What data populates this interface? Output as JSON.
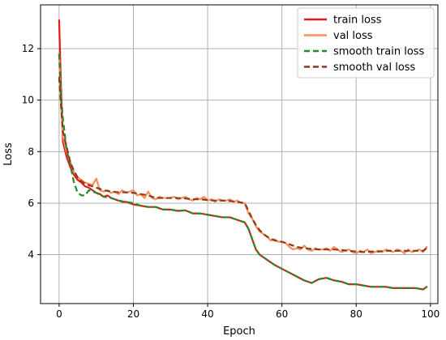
{
  "chart_data": {
    "type": "line",
    "title": "",
    "xlabel": "Epoch",
    "ylabel": "Loss",
    "xlim": [
      -5,
      102
    ],
    "ylim": [
      2.1,
      13.7
    ],
    "xticks": [
      0,
      20,
      40,
      60,
      80,
      100
    ],
    "yticks": [
      4,
      6,
      8,
      10,
      12
    ],
    "grid": true,
    "legend": "top-right",
    "series": [
      {
        "name": "train loss",
        "color": "#e31a1c",
        "style": "solid",
        "x": [
          0,
          0.5,
          1,
          2,
          3,
          4,
          5,
          6,
          7,
          8,
          9,
          10,
          11,
          12,
          13,
          14,
          15,
          16,
          17,
          18,
          19,
          20,
          22,
          24,
          26,
          28,
          30,
          32,
          34,
          36,
          38,
          40,
          42,
          44,
          46,
          48,
          49,
          50,
          51,
          52,
          53,
          54,
          55,
          56,
          58,
          60,
          62,
          64,
          66,
          68,
          70,
          72,
          74,
          76,
          78,
          80,
          82,
          84,
          86,
          88,
          90,
          92,
          94,
          96,
          98,
          99
        ],
        "y": [
          13.1,
          10.6,
          8.4,
          7.8,
          7.4,
          7.1,
          6.9,
          6.8,
          6.65,
          6.6,
          6.5,
          6.4,
          6.35,
          6.25,
          6.3,
          6.2,
          6.15,
          6.1,
          6.05,
          6.05,
          6.0,
          5.95,
          5.9,
          5.85,
          5.85,
          5.75,
          5.75,
          5.7,
          5.72,
          5.6,
          5.6,
          5.55,
          5.5,
          5.45,
          5.45,
          5.35,
          5.3,
          5.25,
          5.0,
          4.6,
          4.2,
          4.0,
          3.9,
          3.8,
          3.6,
          3.45,
          3.3,
          3.15,
          3.0,
          2.9,
          3.05,
          3.1,
          3.0,
          2.95,
          2.85,
          2.85,
          2.8,
          2.75,
          2.75,
          2.75,
          2.7,
          2.7,
          2.7,
          2.7,
          2.65,
          2.75
        ]
      },
      {
        "name": "val loss",
        "color": "#fc8d59",
        "style": "solid",
        "x": [
          0,
          0.5,
          1,
          2,
          3,
          4,
          5,
          6,
          7,
          8,
          9,
          10,
          11,
          12,
          13,
          14,
          15,
          16,
          17,
          18,
          19,
          20,
          21,
          22,
          23,
          24,
          25,
          26,
          27,
          28,
          29,
          30,
          31,
          32,
          33,
          34,
          35,
          36,
          37,
          38,
          39,
          40,
          41,
          42,
          43,
          44,
          45,
          46,
          47,
          48,
          49,
          50,
          51,
          52,
          53,
          54,
          55,
          56,
          57,
          58,
          59,
          60,
          61,
          62,
          63,
          64,
          65,
          66,
          67,
          68,
          69,
          70,
          71,
          72,
          73,
          74,
          75,
          76,
          77,
          78,
          79,
          80,
          81,
          82,
          83,
          84,
          85,
          86,
          87,
          88,
          89,
          90,
          91,
          92,
          93,
          94,
          95,
          96,
          97,
          98,
          99
        ],
        "y": [
          11.8,
          9.9,
          8.6,
          8.0,
          7.6,
          7.2,
          7.0,
          6.9,
          6.8,
          6.75,
          6.7,
          6.95,
          6.5,
          6.45,
          6.5,
          6.4,
          6.45,
          6.35,
          6.5,
          6.4,
          6.45,
          6.5,
          6.3,
          6.35,
          6.2,
          6.45,
          6.2,
          6.15,
          6.25,
          6.2,
          6.2,
          6.2,
          6.25,
          6.15,
          6.2,
          6.25,
          6.15,
          6.1,
          6.2,
          6.15,
          6.25,
          6.1,
          6.15,
          6.05,
          6.15,
          6.1,
          6.1,
          6.15,
          6.05,
          6.1,
          6.0,
          6.0,
          5.6,
          5.4,
          5.1,
          4.9,
          4.8,
          4.7,
          4.55,
          4.6,
          4.5,
          4.5,
          4.45,
          4.3,
          4.2,
          4.25,
          4.2,
          4.35,
          4.2,
          4.15,
          4.25,
          4.2,
          4.2,
          4.25,
          4.15,
          4.3,
          4.2,
          4.1,
          4.15,
          4.2,
          4.1,
          4.05,
          4.15,
          4.1,
          4.2,
          4.05,
          4.1,
          4.15,
          4.1,
          4.2,
          4.15,
          4.1,
          4.2,
          4.15,
          4.05,
          4.2,
          4.1,
          4.15,
          4.2,
          4.1,
          4.3
        ]
      },
      {
        "name": "smooth train loss",
        "color": "#238b23",
        "style": "dashed",
        "x": [
          0,
          0.5,
          1,
          2,
          3,
          4,
          5,
          6,
          7,
          8,
          9,
          10,
          12,
          14,
          16,
          18,
          20,
          22,
          24,
          26,
          28,
          30,
          32,
          34,
          36,
          38,
          40,
          42,
          44,
          46,
          48,
          49,
          50,
          51,
          52,
          53,
          54,
          55,
          56,
          58,
          60,
          62,
          64,
          66,
          68,
          70,
          72,
          74,
          76,
          78,
          80,
          82,
          84,
          86,
          88,
          90,
          92,
          94,
          96,
          98,
          99
        ],
        "y": [
          11.8,
          10.2,
          9.3,
          8.1,
          7.5,
          6.8,
          6.4,
          6.3,
          6.3,
          6.5,
          6.45,
          6.4,
          6.25,
          6.2,
          6.1,
          6.05,
          6.0,
          5.9,
          5.85,
          5.85,
          5.75,
          5.75,
          5.7,
          5.72,
          5.6,
          5.6,
          5.55,
          5.5,
          5.45,
          5.45,
          5.35,
          5.3,
          5.25,
          5.0,
          4.6,
          4.2,
          4.0,
          3.9,
          3.8,
          3.6,
          3.45,
          3.3,
          3.15,
          3.0,
          2.9,
          3.05,
          3.1,
          3.0,
          2.95,
          2.85,
          2.85,
          2.8,
          2.75,
          2.75,
          2.75,
          2.7,
          2.7,
          2.7,
          2.7,
          2.65,
          2.75
        ]
      },
      {
        "name": "smooth val loss",
        "color": "#8b3a1a",
        "style": "dashed",
        "x": [
          0,
          0.5,
          1,
          2,
          3,
          4,
          5,
          6,
          7,
          8,
          10,
          12,
          14,
          16,
          18,
          20,
          22,
          24,
          26,
          28,
          30,
          32,
          34,
          36,
          38,
          40,
          42,
          44,
          46,
          48,
          50,
          51,
          52,
          53,
          54,
          55,
          56,
          58,
          60,
          62,
          64,
          66,
          68,
          70,
          72,
          74,
          76,
          78,
          80,
          82,
          84,
          86,
          88,
          90,
          92,
          94,
          96,
          98,
          99
        ],
        "y": [
          10.9,
          9.8,
          8.8,
          8.2,
          7.6,
          7.25,
          7.0,
          6.85,
          6.75,
          6.7,
          6.6,
          6.5,
          6.45,
          6.42,
          6.42,
          6.4,
          6.35,
          6.3,
          6.2,
          6.2,
          6.2,
          6.2,
          6.18,
          6.15,
          6.15,
          6.12,
          6.1,
          6.1,
          6.08,
          6.05,
          6.0,
          5.7,
          5.4,
          5.15,
          4.95,
          4.8,
          4.7,
          4.55,
          4.5,
          4.4,
          4.3,
          4.25,
          4.22,
          4.2,
          4.2,
          4.2,
          4.18,
          4.15,
          4.12,
          4.1,
          4.12,
          4.12,
          4.15,
          4.15,
          4.15,
          4.15,
          4.15,
          4.15,
          4.25
        ]
      }
    ]
  }
}
